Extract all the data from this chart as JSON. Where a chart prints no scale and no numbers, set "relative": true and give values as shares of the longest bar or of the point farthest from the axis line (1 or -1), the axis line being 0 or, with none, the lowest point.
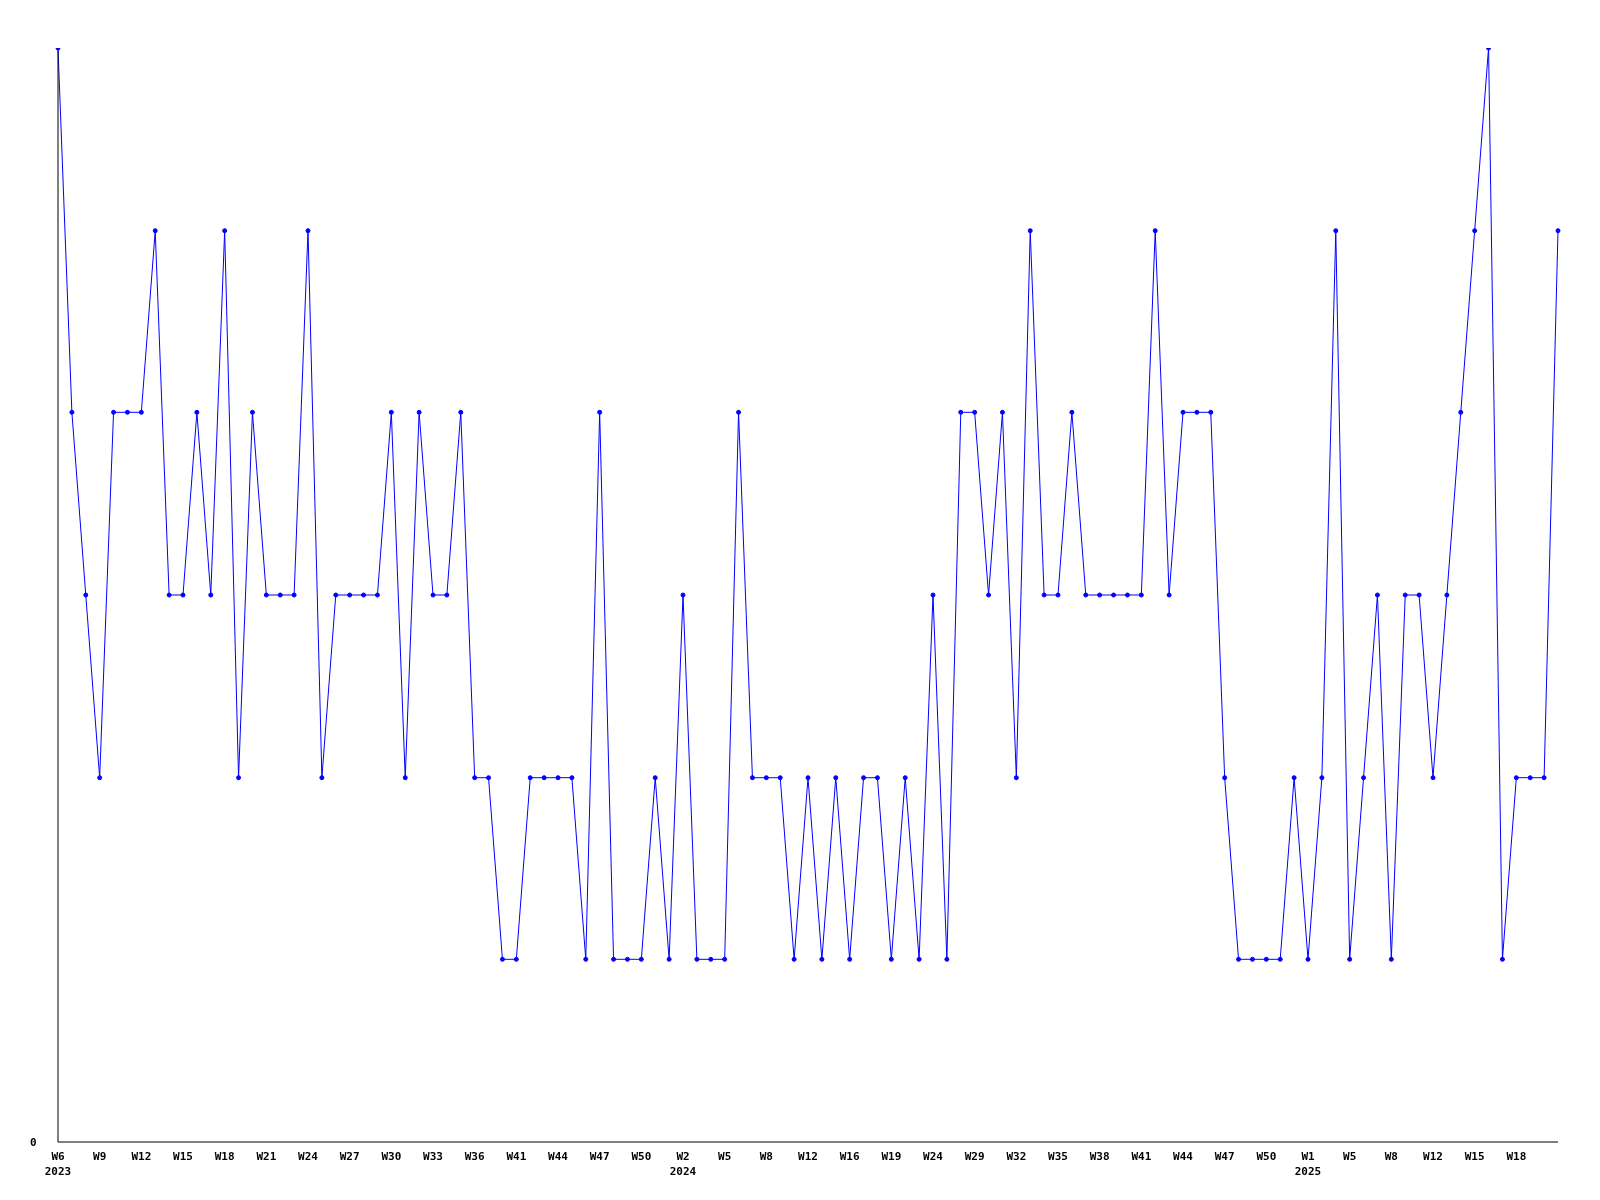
{
  "chart_data": {
    "type": "line",
    "relative": true,
    "color": "#0000ff",
    "marker": "circle",
    "categories": [
      "W6 2023",
      null,
      null,
      "W9",
      null,
      null,
      "W12",
      null,
      null,
      "W15",
      null,
      null,
      "W18",
      null,
      null,
      "W21",
      null,
      null,
      "W24",
      null,
      null,
      "W27",
      null,
      null,
      "W30",
      null,
      null,
      "W33",
      null,
      null,
      "W36",
      null,
      null,
      "W41",
      null,
      null,
      "W44",
      null,
      null,
      "W47",
      null,
      null,
      "W50",
      null,
      null,
      "W2 2024",
      null,
      null,
      "W5",
      null,
      null,
      "W8",
      null,
      null,
      "W12",
      null,
      null,
      "W16",
      null,
      null,
      "W19",
      null,
      null,
      "W24",
      null,
      null,
      "W29",
      null,
      null,
      "W32",
      null,
      null,
      "W35",
      null,
      null,
      "W38",
      null,
      null,
      "W41",
      null,
      null,
      "W44",
      null,
      null,
      "W47",
      null,
      null,
      "W50",
      null,
      null,
      "W1 2025",
      null,
      null,
      "W5",
      null,
      null,
      "W8",
      null,
      null,
      "W12",
      null,
      null,
      "W15",
      null,
      null,
      "W18",
      null,
      null,
      null
    ],
    "values": [
      1,
      0.667,
      0.5,
      0.333,
      0.667,
      0.667,
      0.667,
      0.833,
      0.5,
      0.5,
      0.667,
      0.5,
      0.833,
      0.333,
      0.667,
      0.5,
      0.5,
      0.5,
      0.833,
      0.333,
      0.5,
      0.5,
      0.5,
      0.5,
      0.667,
      0.333,
      0.667,
      0.5,
      0.5,
      0.667,
      0.333,
      0.333,
      0.167,
      0.167,
      0.333,
      0.333,
      0.333,
      0.333,
      0.167,
      0.667,
      0.167,
      0.167,
      0.167,
      0.333,
      0.167,
      0.5,
      0.167,
      0.167,
      0.167,
      0.667,
      0.333,
      0.333,
      0.333,
      0.167,
      0.333,
      0.167,
      0.333,
      0.167,
      0.333,
      0.333,
      0.167,
      0.333,
      0.167,
      0.5,
      0.167,
      0.667,
      0.667,
      0.5,
      0.667,
      0.333,
      0.833,
      0.5,
      0.5,
      0.667,
      0.5,
      0.5,
      0.5,
      0.5,
      0.5,
      0.833,
      0.5,
      0.667,
      0.667,
      0.667,
      0.333,
      0.167,
      0.167,
      0.167,
      0.167,
      0.333,
      0.167,
      0.333,
      0.833,
      0.167,
      0.333,
      0.5,
      0.167,
      0.5,
      0.5,
      0.333,
      0.5,
      0.667,
      0.833,
      1,
      0.167,
      0.333,
      0.333,
      0.333,
      0.833
    ],
    "annotations": [
      "0"
    ]
  }
}
